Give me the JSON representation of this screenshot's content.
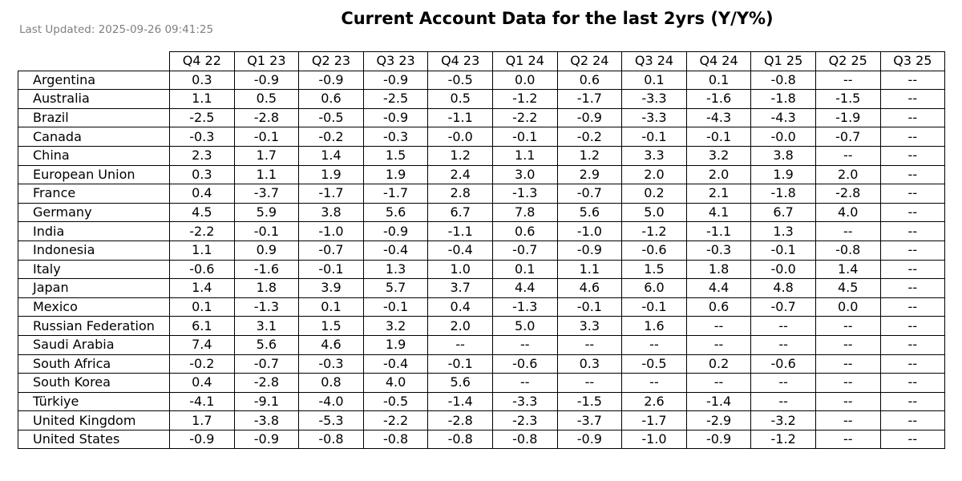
{
  "header": {
    "updated": "Last Updated: 2025-09-26 09:41:25",
    "title": "Current Account Data for the last 2yrs (Y/Y%)"
  },
  "chart_data": {
    "type": "table",
    "title": "Current Account Data for the last 2yrs (Y/Y%)",
    "columns": [
      "Q4 22",
      "Q1 23",
      "Q2 23",
      "Q3 23",
      "Q4 23",
      "Q1 24",
      "Q2 24",
      "Q3 24",
      "Q4 24",
      "Q1 25",
      "Q2 25",
      "Q3 25"
    ],
    "rows": [
      {
        "country": "Argentina",
        "values": [
          "0.3",
          "-0.9",
          "-0.9",
          "-0.9",
          "-0.5",
          "0.0",
          "0.6",
          "0.1",
          "0.1",
          "-0.8",
          "--",
          "--"
        ]
      },
      {
        "country": "Australia",
        "values": [
          "1.1",
          "0.5",
          "0.6",
          "-2.5",
          "0.5",
          "-1.2",
          "-1.7",
          "-3.3",
          "-1.6",
          "-1.8",
          "-1.5",
          "--"
        ]
      },
      {
        "country": "Brazil",
        "values": [
          "-2.5",
          "-2.8",
          "-0.5",
          "-0.9",
          "-1.1",
          "-2.2",
          "-0.9",
          "-3.3",
          "-4.3",
          "-4.3",
          "-1.9",
          "--"
        ]
      },
      {
        "country": "Canada",
        "values": [
          "-0.3",
          "-0.1",
          "-0.2",
          "-0.3",
          "-0.0",
          "-0.1",
          "-0.2",
          "-0.1",
          "-0.1",
          "-0.0",
          "-0.7",
          "--"
        ]
      },
      {
        "country": "China",
        "values": [
          "2.3",
          "1.7",
          "1.4",
          "1.5",
          "1.2",
          "1.1",
          "1.2",
          "3.3",
          "3.2",
          "3.8",
          "--",
          "--"
        ]
      },
      {
        "country": "European Union",
        "values": [
          "0.3",
          "1.1",
          "1.9",
          "1.9",
          "2.4",
          "3.0",
          "2.9",
          "2.0",
          "2.0",
          "1.9",
          "2.0",
          "--"
        ]
      },
      {
        "country": "France",
        "values": [
          "0.4",
          "-3.7",
          "-1.7",
          "-1.7",
          "2.8",
          "-1.3",
          "-0.7",
          "0.2",
          "2.1",
          "-1.8",
          "-2.8",
          "--"
        ]
      },
      {
        "country": "Germany",
        "values": [
          "4.5",
          "5.9",
          "3.8",
          "5.6",
          "6.7",
          "7.8",
          "5.6",
          "5.0",
          "4.1",
          "6.7",
          "4.0",
          "--"
        ]
      },
      {
        "country": "India",
        "values": [
          "-2.2",
          "-0.1",
          "-1.0",
          "-0.9",
          "-1.1",
          "0.6",
          "-1.0",
          "-1.2",
          "-1.1",
          "1.3",
          "--",
          "--"
        ]
      },
      {
        "country": "Indonesia",
        "values": [
          "1.1",
          "0.9",
          "-0.7",
          "-0.4",
          "-0.4",
          "-0.7",
          "-0.9",
          "-0.6",
          "-0.3",
          "-0.1",
          "-0.8",
          "--"
        ]
      },
      {
        "country": "Italy",
        "values": [
          "-0.6",
          "-1.6",
          "-0.1",
          "1.3",
          "1.0",
          "0.1",
          "1.1",
          "1.5",
          "1.8",
          "-0.0",
          "1.4",
          "--"
        ]
      },
      {
        "country": "Japan",
        "values": [
          "1.4",
          "1.8",
          "3.9",
          "5.7",
          "3.7",
          "4.4",
          "4.6",
          "6.0",
          "4.4",
          "4.8",
          "4.5",
          "--"
        ]
      },
      {
        "country": "Mexico",
        "values": [
          "0.1",
          "-1.3",
          "0.1",
          "-0.1",
          "0.4",
          "-1.3",
          "-0.1",
          "-0.1",
          "0.6",
          "-0.7",
          "0.0",
          "--"
        ]
      },
      {
        "country": "Russian Federation",
        "values": [
          "6.1",
          "3.1",
          "1.5",
          "3.2",
          "2.0",
          "5.0",
          "3.3",
          "1.6",
          "--",
          "--",
          "--",
          "--"
        ]
      },
      {
        "country": "Saudi Arabia",
        "values": [
          "7.4",
          "5.6",
          "4.6",
          "1.9",
          "--",
          "--",
          "--",
          "--",
          "--",
          "--",
          "--",
          "--"
        ]
      },
      {
        "country": "South Africa",
        "values": [
          "-0.2",
          "-0.7",
          "-0.3",
          "-0.4",
          "-0.1",
          "-0.6",
          "0.3",
          "-0.5",
          "0.2",
          "-0.6",
          "--",
          "--"
        ]
      },
      {
        "country": "South Korea",
        "values": [
          "0.4",
          "-2.8",
          "0.8",
          "4.0",
          "5.6",
          "--",
          "--",
          "--",
          "--",
          "--",
          "--",
          "--"
        ]
      },
      {
        "country": "Türkiye",
        "values": [
          "-4.1",
          "-9.1",
          "-4.0",
          "-0.5",
          "-1.4",
          "-3.3",
          "-1.5",
          "2.6",
          "-1.4",
          "--",
          "--",
          "--"
        ]
      },
      {
        "country": "United Kingdom",
        "values": [
          "1.7",
          "-3.8",
          "-5.3",
          "-2.2",
          "-2.8",
          "-2.3",
          "-3.7",
          "-1.7",
          "-2.9",
          "-3.2",
          "--",
          "--"
        ]
      },
      {
        "country": "United States",
        "values": [
          "-0.9",
          "-0.9",
          "-0.8",
          "-0.8",
          "-0.8",
          "-0.8",
          "-0.9",
          "-1.0",
          "-0.9",
          "-1.2",
          "--",
          "--"
        ]
      }
    ]
  }
}
